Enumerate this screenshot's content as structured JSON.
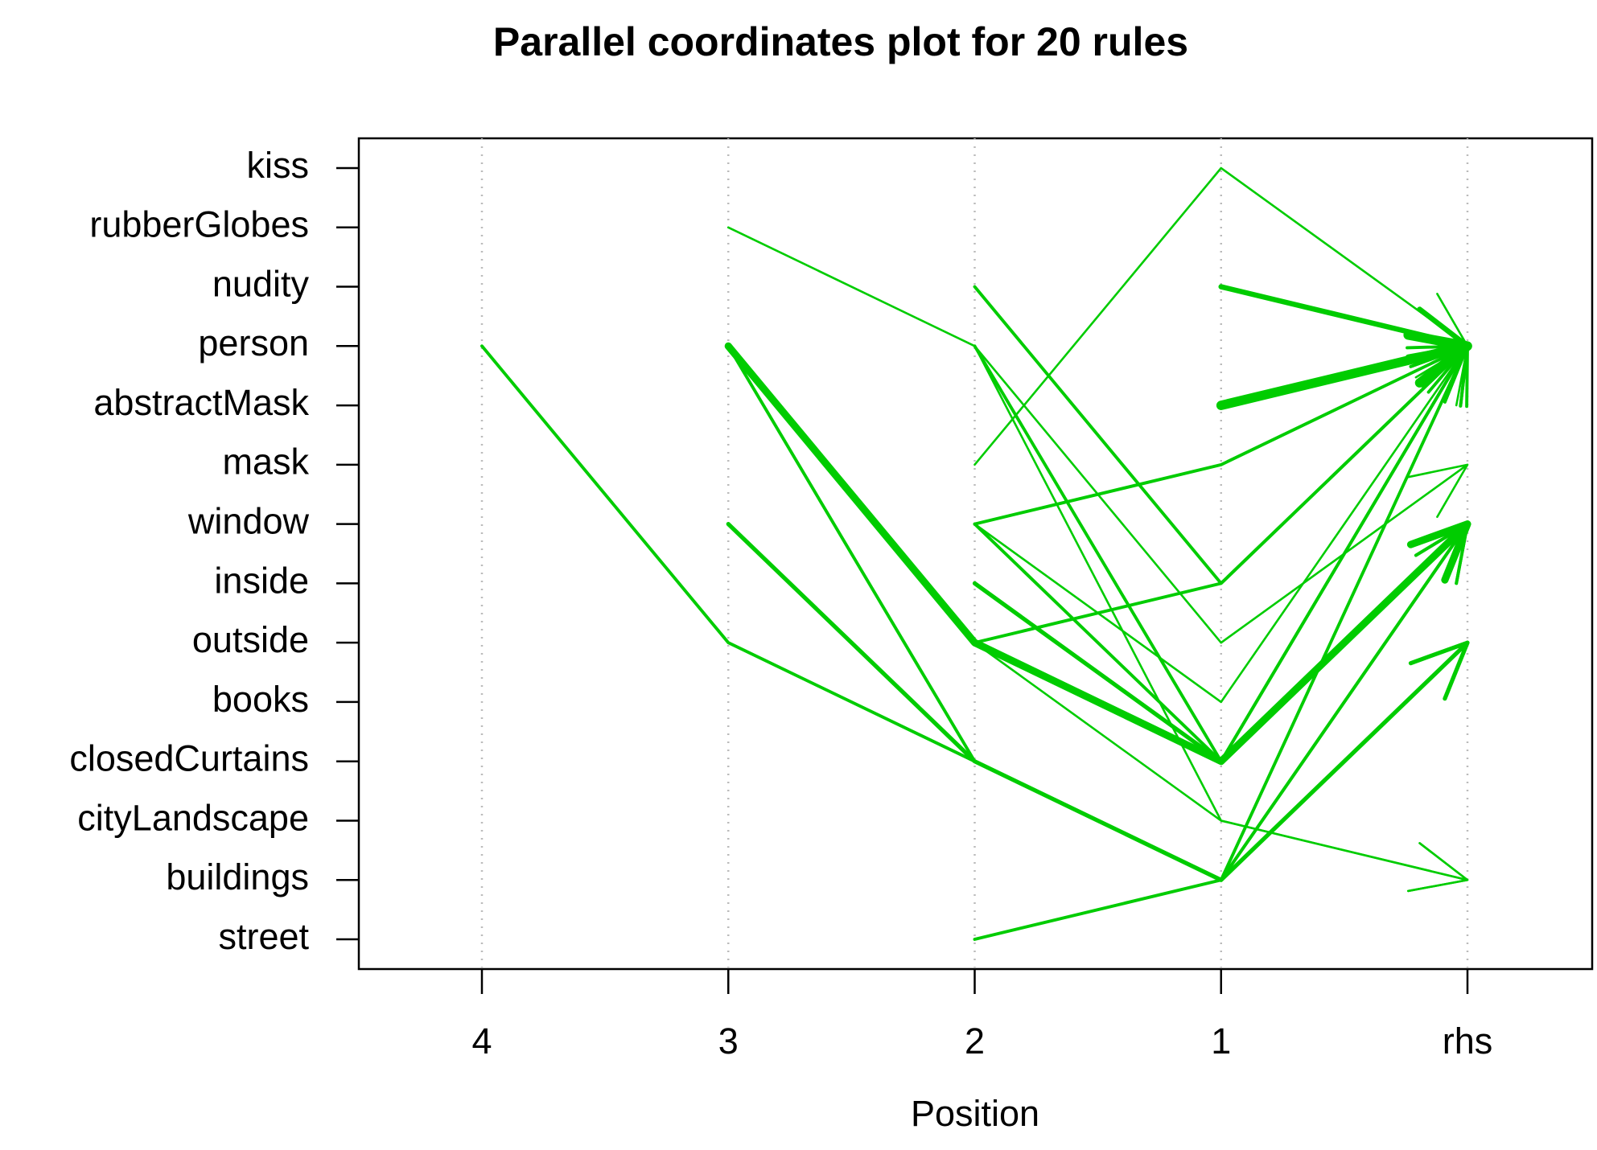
{
  "chart_data": {
    "type": "parallel-coordinates",
    "title": "Parallel coordinates plot for 20 rules",
    "x_label": "Position",
    "positions": [
      "4",
      "3",
      "2",
      "1",
      "rhs"
    ],
    "items": [
      "kiss",
      "rubberGlobes",
      "nudity",
      "person",
      "abstractMask",
      "mask",
      "window",
      "inside",
      "outside",
      "books",
      "closedCurtains",
      "cityLandscape",
      "buildings",
      "street"
    ],
    "color": "#00cc00",
    "grid": true,
    "rules": [
      {
        "items": [
          null,
          null,
          null,
          "nudity",
          "person"
        ],
        "width": 5
      },
      {
        "items": [
          null,
          null,
          null,
          "abstractMask",
          "person"
        ],
        "width": 9
      },
      {
        "items": [
          null,
          null,
          "mask",
          "kiss",
          "person"
        ],
        "width": 2
      },
      {
        "items": [
          null,
          null,
          "nudity",
          "inside",
          "person"
        ],
        "width": 3
      },
      {
        "items": [
          null,
          "rubberGlobes",
          "person",
          "outside",
          "mask"
        ],
        "width": 2
      },
      {
        "items": [
          null,
          null,
          "person",
          "cityLandscape",
          "buildings"
        ],
        "width": 2
      },
      {
        "items": [
          null,
          null,
          "window",
          "mask",
          "person"
        ],
        "width": 3
      },
      {
        "items": [
          null,
          null,
          "window",
          "books",
          "person"
        ],
        "width": 2
      },
      {
        "items": [
          null,
          null,
          "outside",
          "inside",
          "person"
        ],
        "width": 3
      },
      {
        "items": [
          null,
          "person",
          "outside",
          "closedCurtains",
          "window"
        ],
        "width": 7
      },
      {
        "items": [
          null,
          null,
          "inside",
          "closedCurtains",
          "window"
        ],
        "width": 4
      },
      {
        "items": [
          null,
          "window",
          "closedCurtains",
          "buildings",
          "outside"
        ],
        "width": 4
      },
      {
        "items": [
          null,
          "person",
          "closedCurtains",
          "buildings",
          "person"
        ],
        "width": 3
      },
      {
        "items": [
          "person",
          "outside",
          "closedCurtains",
          "buildings",
          "window"
        ],
        "width": 3
      },
      {
        "items": [
          null,
          null,
          "street",
          "buildings",
          "window"
        ],
        "width": 3
      },
      {
        "items": [
          null,
          null,
          "outside",
          "cityLandscape",
          "buildings"
        ],
        "width": 2
      },
      {
        "items": [
          null,
          null,
          null,
          "closedCurtains",
          "person"
        ],
        "width": 3
      },
      {
        "items": [
          null,
          null,
          "person",
          "closedCurtains",
          "person"
        ],
        "width": 3
      },
      {
        "items": [
          null,
          null,
          "window",
          "closedCurtains",
          "window"
        ],
        "width": 3
      },
      {
        "items": [
          null,
          null,
          null,
          "buildings",
          "outside"
        ],
        "width": 3
      }
    ]
  }
}
